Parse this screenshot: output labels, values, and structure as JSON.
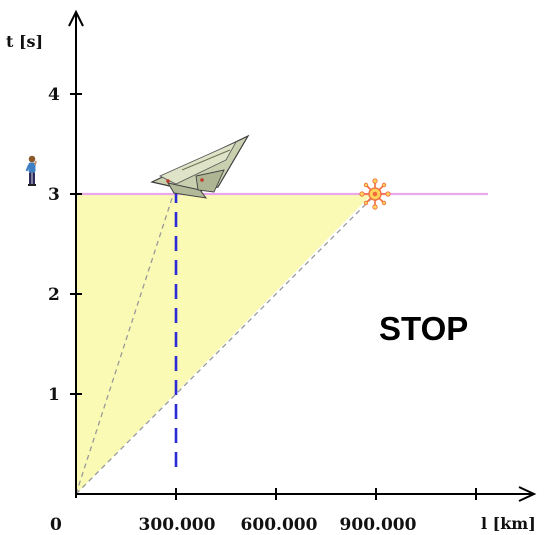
{
  "diagram": {
    "y_axis_label": "t [s]",
    "x_axis_label": "l [km]",
    "origin_label": "0",
    "y_ticks": [
      "1",
      "2",
      "3",
      "4"
    ],
    "x_ticks": [
      "300.000",
      "600.000",
      "900.000"
    ],
    "stop_text": "STOP",
    "icons": {
      "observer": "person-observer-icon",
      "plane": "jet-plane-icon",
      "signal": "light-flash-icon"
    },
    "colors": {
      "fill": "#fafab4",
      "time_line": "#e9a8e9",
      "position_line": "#2b2bd6",
      "light_lines": "#999999"
    }
  }
}
